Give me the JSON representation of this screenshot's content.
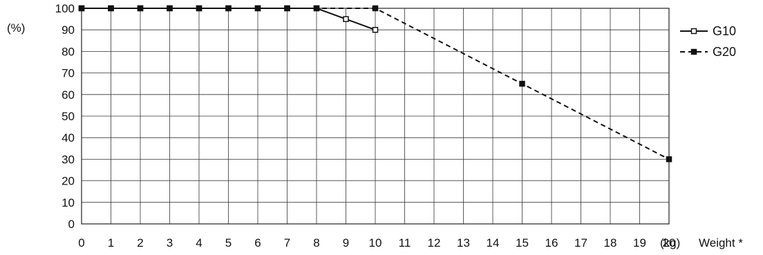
{
  "chart_data": {
    "type": "line",
    "y_unit": "(%)",
    "x_unit": "(kg)",
    "x_label": "Weight *",
    "xlim": [
      0,
      20
    ],
    "ylim": [
      0,
      100
    ],
    "x_ticks": [
      0,
      1,
      2,
      3,
      4,
      5,
      6,
      7,
      8,
      9,
      10,
      11,
      12,
      13,
      14,
      15,
      16,
      17,
      18,
      19,
      20
    ],
    "y_ticks": [
      0,
      10,
      20,
      30,
      40,
      50,
      60,
      70,
      80,
      90,
      100
    ],
    "grid": true,
    "legend_position": "right",
    "series": [
      {
        "name": "G10",
        "style": "solid",
        "marker": "open-square",
        "color": "#111111",
        "points": [
          [
            0,
            100
          ],
          [
            1,
            100
          ],
          [
            2,
            100
          ],
          [
            3,
            100
          ],
          [
            4,
            100
          ],
          [
            5,
            100
          ],
          [
            6,
            100
          ],
          [
            7,
            100
          ],
          [
            8,
            100
          ],
          [
            9,
            95
          ],
          [
            10,
            90
          ]
        ]
      },
      {
        "name": "G20",
        "style": "dashed",
        "marker": "filled-square",
        "color": "#111111",
        "points": [
          [
            0,
            100
          ],
          [
            1,
            100
          ],
          [
            2,
            100
          ],
          [
            3,
            100
          ],
          [
            4,
            100
          ],
          [
            5,
            100
          ],
          [
            6,
            100
          ],
          [
            7,
            100
          ],
          [
            8,
            100
          ],
          [
            10,
            100
          ],
          [
            15,
            65
          ],
          [
            20,
            30
          ]
        ]
      }
    ]
  }
}
